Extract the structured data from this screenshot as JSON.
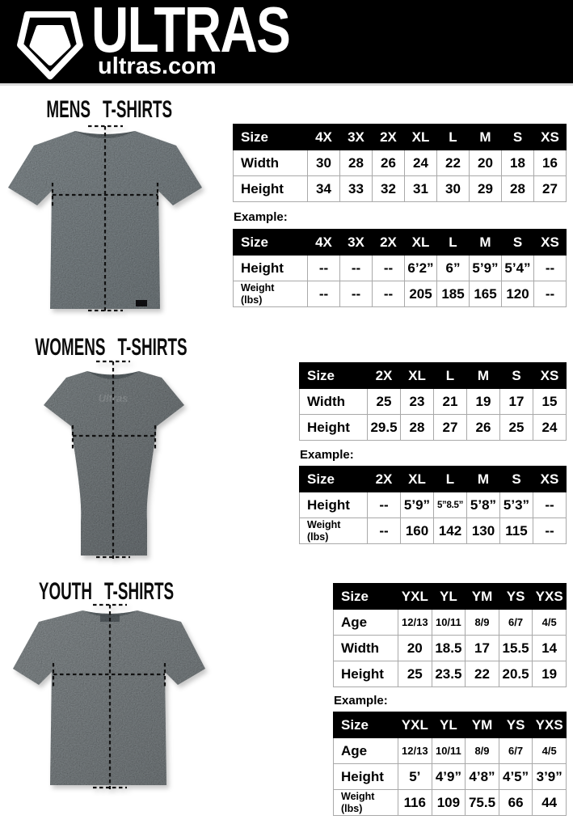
{
  "header": {
    "brand": "ULTRAS",
    "site": "ultras.com",
    "bg_color": "#000000",
    "logo_icon": "pentagon-shield-icon"
  },
  "colors": {
    "table_border": "#a9a9a9",
    "table_header_bg": "#000000",
    "table_header_text": "#ffffff",
    "shirt_gray_mens": "#8d969a",
    "shirt_gray_womens": "#868d90",
    "shirt_gray_youth": "#8f9699"
  },
  "sections": [
    {
      "id": "mens",
      "title": "MENS T-SHIRTS",
      "shirt_image": "mens-gray-tshirt-with-dashed-measurement-lines",
      "example_label": "Example:",
      "size_table": {
        "columns": [
          "Size",
          "4X",
          "3X",
          "2X",
          "XL",
          "L",
          "M",
          "S",
          "XS"
        ],
        "rows": [
          {
            "label": "Width",
            "values": [
              "30",
              "28",
              "26",
              "24",
              "22",
              "20",
              "18",
              "16"
            ]
          },
          {
            "label": "Height",
            "values": [
              "34",
              "33",
              "32",
              "31",
              "30",
              "29",
              "28",
              "27"
            ]
          }
        ]
      },
      "example_table": {
        "columns": [
          "Size",
          "4X",
          "3X",
          "2X",
          "XL",
          "L",
          "M",
          "S",
          "XS"
        ],
        "rows": [
          {
            "label": "Height",
            "values": [
              "--",
              "--",
              "--",
              "6’2”",
              "6”",
              "5’9”",
              "5’4”",
              "--"
            ]
          },
          {
            "label": "Weight\n(lbs)",
            "values": [
              "--",
              "--",
              "--",
              "205",
              "185",
              "165",
              "120",
              "--"
            ]
          }
        ]
      }
    },
    {
      "id": "womens",
      "title": "WOMENS T-SHIRTS",
      "shirt_image": "womens-fitted-gray-tshirt-with-dashed-measurement-lines",
      "example_label": "Example:",
      "size_table": {
        "columns": [
          "Size",
          "2X",
          "XL",
          "L",
          "M",
          "S",
          "XS"
        ],
        "rows": [
          {
            "label": "Width",
            "values": [
              "25",
              "23",
              "21",
              "19",
              "17",
              "15"
            ]
          },
          {
            "label": "Height",
            "values": [
              "29.5",
              "28",
              "27",
              "26",
              "25",
              "24"
            ]
          }
        ]
      },
      "example_table": {
        "columns": [
          "Size",
          "2X",
          "XL",
          "L",
          "M",
          "S",
          "XS"
        ],
        "rows": [
          {
            "label": "Height",
            "values": [
              "--",
              "5’9”",
              "5”8.5”",
              "5’8”",
              "5’3”",
              "--"
            ]
          },
          {
            "label": "Weight\n(lbs)",
            "values": [
              "--",
              "160",
              "142",
              "130",
              "115",
              "--"
            ]
          }
        ]
      }
    },
    {
      "id": "youth",
      "title": "YOUTH T-SHIRTS",
      "shirt_image": "youth-gray-tshirt-with-dashed-measurement-lines",
      "example_label": "Example:",
      "size_table": {
        "columns": [
          "Size",
          "YXL",
          "YL",
          "YM",
          "YS",
          "YXS"
        ],
        "rows": [
          {
            "label": "Age",
            "values": [
              "12/13",
              "10/11",
              "8/9",
              "6/7",
              "4/5"
            ]
          },
          {
            "label": "Width",
            "values": [
              "20",
              "18.5",
              "17",
              "15.5",
              "14"
            ]
          },
          {
            "label": "Height",
            "values": [
              "25",
              "23.5",
              "22",
              "20.5",
              "19"
            ]
          }
        ]
      },
      "example_table": {
        "columns": [
          "Size",
          "YXL",
          "YL",
          "YM",
          "YS",
          "YXS"
        ],
        "rows": [
          {
            "label": "Age",
            "values": [
              "12/13",
              "10/11",
              "8/9",
              "6/7",
              "4/5"
            ]
          },
          {
            "label": "Height",
            "values": [
              "5’",
              "4’9”",
              "4’8”",
              "4’5”",
              "3’9”"
            ]
          },
          {
            "label": "Weight\n(lbs)",
            "values": [
              "116",
              "109",
              "75.5",
              "66",
              "44"
            ]
          }
        ]
      }
    }
  ]
}
